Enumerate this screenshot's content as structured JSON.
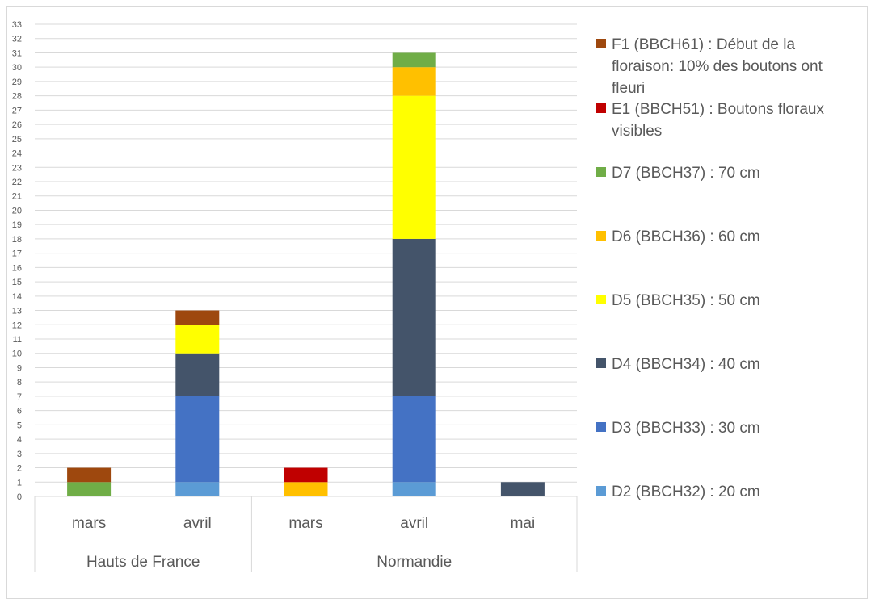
{
  "chart_data": {
    "type": "bar",
    "stacked": true,
    "title": "",
    "xlabel": "",
    "ylabel": "",
    "ylim": [
      0,
      33
    ],
    "ytick_step": 1,
    "grid": true,
    "legend_position": "right",
    "groups": [
      {
        "label": "Hauts de France",
        "categories": [
          "mars",
          "avril"
        ]
      },
      {
        "label": "Normandie",
        "categories": [
          "mars",
          "avril",
          "mai"
        ]
      }
    ],
    "categories": [
      "mars",
      "avril",
      "mars",
      "avril",
      "mai"
    ],
    "series": [
      {
        "name": "D2 (BBCH32) : 20 cm",
        "color": "#5b9bd5",
        "values": [
          0,
          1,
          0,
          1,
          0
        ]
      },
      {
        "name": "D3 (BBCH33) : 30 cm",
        "color": "#4472c4",
        "values": [
          0,
          6,
          0,
          6,
          0
        ]
      },
      {
        "name": "D4 (BBCH34) : 40 cm",
        "color": "#44546a",
        "values": [
          0,
          3,
          0,
          11,
          1
        ]
      },
      {
        "name": "D5 (BBCH35) : 50 cm",
        "color": "#ffff00",
        "values": [
          0,
          2,
          0,
          10,
          0
        ]
      },
      {
        "name": "D6 (BBCH36) : 60 cm",
        "color": "#ffc000",
        "values": [
          0,
          0,
          1,
          2,
          0
        ]
      },
      {
        "name": "D7 (BBCH37) : 70 cm",
        "color": "#70ad47",
        "values": [
          1,
          0,
          0,
          1,
          0
        ]
      },
      {
        "name": "E1 (BBCH51) : Boutons floraux visibles",
        "color": "#c00000",
        "values": [
          0,
          0,
          1,
          0,
          0
        ]
      },
      {
        "name": "F1 (BBCH61) : Début de la floraison: 10% des boutons ont fleuri",
        "color": "#9e480e",
        "values": [
          1,
          1,
          0,
          0,
          0
        ]
      }
    ]
  }
}
